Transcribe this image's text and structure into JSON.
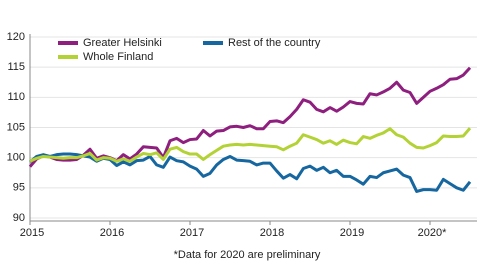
{
  "chart_data": {
    "type": "line",
    "categories": [
      "2015",
      null,
      null,
      null,
      null,
      null,
      null,
      null,
      null,
      null,
      null,
      null,
      "2016",
      null,
      null,
      null,
      null,
      null,
      null,
      null,
      null,
      null,
      null,
      null,
      "2017",
      null,
      null,
      null,
      null,
      null,
      null,
      null,
      null,
      null,
      null,
      null,
      "2018",
      null,
      null,
      null,
      null,
      null,
      null,
      null,
      null,
      null,
      null,
      null,
      "2019",
      null,
      null,
      null,
      null,
      null,
      null,
      null,
      null,
      null,
      null,
      null,
      "2020*",
      null,
      null,
      null,
      null,
      null,
      null
    ],
    "series": [
      {
        "name": "Greater Helsinki",
        "color": "#8e1f7e",
        "values": [
          98.5,
          99.8,
          100.3,
          100.1,
          99.7,
          99.6,
          99.6,
          99.7,
          100.4,
          101.4,
          99.9,
          100.3,
          100.0,
          99.5,
          100.5,
          99.8,
          100.6,
          101.8,
          101.7,
          101.6,
          100.0,
          102.8,
          103.2,
          102.5,
          103.0,
          103.1,
          104.5,
          103.6,
          104.4,
          104.5,
          105.1,
          105.2,
          105.0,
          105.3,
          104.8,
          104.8,
          106.0,
          106.1,
          105.8,
          106.8,
          108.0,
          109.6,
          109.2,
          108.0,
          107.6,
          108.3,
          107.7,
          108.4,
          109.3,
          109.0,
          108.9,
          110.6,
          110.4,
          110.9,
          111.5,
          112.5,
          111.2,
          110.8,
          109.0,
          110.0,
          111.0,
          111.5,
          112.1,
          113.0,
          113.1,
          113.7,
          114.9
        ]
      },
      {
        "name": "Rest of the country",
        "color": "#1667a0",
        "values": [
          99.3,
          100.2,
          100.5,
          100.2,
          100.5,
          100.6,
          100.6,
          100.5,
          100.3,
          100.1,
          99.4,
          99.9,
          99.7,
          98.7,
          99.3,
          98.8,
          99.5,
          99.6,
          100.2,
          98.8,
          98.4,
          100.1,
          99.5,
          99.3,
          98.6,
          98.1,
          96.9,
          97.4,
          98.8,
          99.7,
          100.2,
          99.6,
          99.5,
          99.4,
          98.8,
          99.1,
          99.1,
          97.8,
          96.6,
          97.2,
          96.5,
          98.2,
          98.6,
          97.9,
          98.4,
          97.5,
          97.9,
          96.9,
          96.9,
          96.3,
          95.6,
          96.9,
          96.7,
          97.5,
          97.8,
          98.1,
          97.1,
          96.7,
          94.4,
          94.7,
          94.7,
          94.6,
          96.4,
          95.7,
          95.0,
          94.6,
          96.0
        ]
      },
      {
        "name": "Whole Finland",
        "color": "#b3d236",
        "values": [
          99.4,
          99.9,
          100.2,
          100.1,
          100.0,
          99.9,
          100.0,
          100.0,
          100.3,
          100.7,
          99.6,
          100.0,
          99.9,
          99.4,
          99.8,
          99.4,
          100.1,
          100.7,
          100.5,
          100.8,
          99.7,
          101.4,
          101.7,
          101.0,
          100.6,
          100.6,
          99.7,
          100.5,
          101.2,
          101.9,
          102.1,
          102.2,
          102.1,
          102.2,
          102.1,
          102.0,
          101.9,
          101.8,
          101.3,
          101.9,
          102.4,
          103.8,
          103.4,
          103.0,
          102.4,
          102.8,
          102.2,
          102.9,
          102.5,
          102.3,
          103.5,
          103.2,
          103.7,
          104.1,
          104.8,
          103.8,
          103.4,
          102.4,
          101.7,
          101.6,
          102.0,
          102.5,
          103.6,
          103.5,
          103.5,
          103.6,
          104.9
        ]
      }
    ],
    "ylim": [
      89.5,
      120.5
    ],
    "yticks": [
      90,
      95,
      100,
      105,
      110,
      115,
      120
    ],
    "grid": true,
    "footnote": "*Data for 2020 are preliminary"
  }
}
